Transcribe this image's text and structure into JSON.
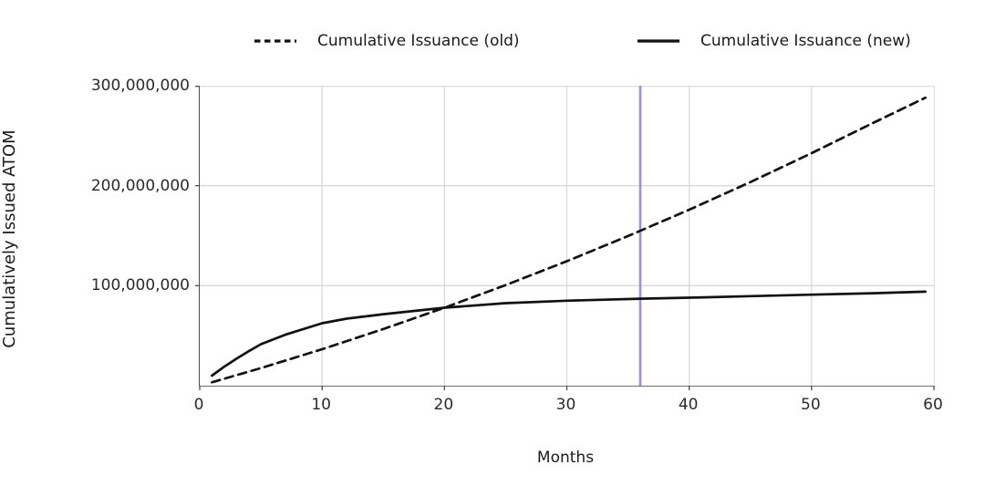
{
  "chart_data": {
    "type": "line",
    "title": "",
    "xlabel": "Months",
    "ylabel": "Cumulatively Issued ATOM",
    "xlim": [
      0,
      60
    ],
    "ylim": [
      0,
      300000000
    ],
    "grid": true,
    "legend_position": "top",
    "x_ticks": [
      {
        "value": 0,
        "label": "0"
      },
      {
        "value": 10,
        "label": "10"
      },
      {
        "value": 20,
        "label": "20"
      },
      {
        "value": 30,
        "label": "30"
      },
      {
        "value": 40,
        "label": "40"
      },
      {
        "value": 50,
        "label": "50"
      },
      {
        "value": 60,
        "label": "60"
      }
    ],
    "y_ticks": [
      {
        "value": 100000000,
        "label": "100,000,000"
      },
      {
        "value": 200000000,
        "label": "200,000,000"
      },
      {
        "value": 300000000,
        "label": "300,000,000"
      }
    ],
    "x_gridlines": [
      10,
      20,
      30,
      40,
      50
    ],
    "series": [
      {
        "name": "Cumulative Issuance (old)",
        "style": "dashed",
        "x": [
          1,
          5,
          10,
          15,
          20,
          25,
          30,
          35,
          40,
          45,
          50,
          55,
          59.3
        ],
        "values": [
          3400000,
          17600000,
          36500000,
          56600000,
          78000000,
          100600000,
          124500000,
          149600000,
          176000000,
          203600000,
          232500000,
          262600000,
          288000000
        ]
      },
      {
        "name": "Cumulative Issuance (new)",
        "style": "solid",
        "x": [
          1,
          2,
          3,
          4,
          5,
          7,
          10,
          12,
          15,
          20,
          25,
          30,
          36,
          40,
          45,
          50,
          55,
          59.3
        ],
        "values": [
          10000000,
          19000000,
          27000000,
          34500000,
          41500000,
          51000000,
          62500000,
          67000000,
          71500000,
          78000000,
          82500000,
          85000000,
          87000000,
          88000000,
          89500000,
          91000000,
          92500000,
          94000000
        ]
      }
    ],
    "vline": {
      "x": 36,
      "color": "#9c8bec"
    },
    "colors": {
      "line": "#111111",
      "grid": "#d9d9d9",
      "spine": "#4d4d4d",
      "text": "#1a1a1a",
      "background": "#ffffff"
    }
  }
}
